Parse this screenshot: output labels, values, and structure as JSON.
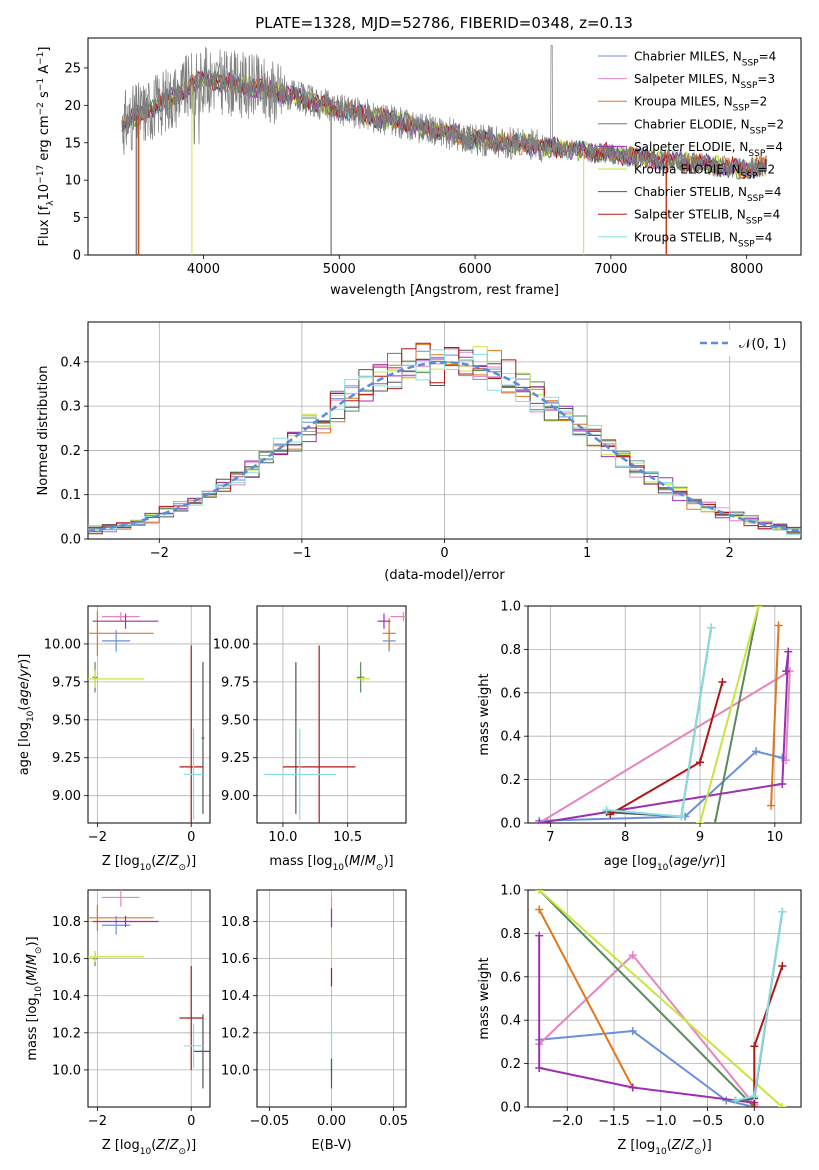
{
  "figure_title": "PLATE=1328, MJD=52786, FIBERID=0348, z=0.13",
  "colors": {
    "Chabrier MILES": "#6a8fdc",
    "Salpeter MILES": "#e684c0",
    "Kroupa MILES": "#e0781c",
    "Chabrier ELODIE": "#5a8a5a",
    "Salpeter ELODIE": "#9b30b0",
    "Kroupa ELODIE": "#c8e640",
    "Chabrier STELIB": "#555555",
    "Salpeter STELIB": "#b01818",
    "Kroupa STELIB": "#88dde0",
    "data": "#7f7f7f",
    "gaussian": "#5b8cdc"
  },
  "chart_data": [
    {
      "type": "line",
      "xlabel": "wavelength [Angstrom, rest frame]",
      "ylabel": "Flux [f_λ10^-17 erg cm^-2 s^-1 A^-1]",
      "xlim": [
        3150,
        8400
      ],
      "ylim": [
        0,
        29
      ],
      "xticks": [
        "4000",
        "5000",
        "6000",
        "7000",
        "8000"
      ],
      "yticks": [
        "0",
        "5",
        "10",
        "15",
        "20",
        "25"
      ],
      "legend_position": "top-right",
      "legend": [
        {
          "label": "Chabrier MILES, N_SSP=4",
          "color": "#6a8fdc"
        },
        {
          "label": "Salpeter MILES, N_SSP=3",
          "color": "#e684c0"
        },
        {
          "label": "Kroupa MILES, N_SSP=2",
          "color": "#e0781c"
        },
        {
          "label": "Chabrier ELODIE, N_SSP=2",
          "color": "#5a8a5a"
        },
        {
          "label": "Salpeter ELODIE, N_SSP=4",
          "color": "#9b30b0"
        },
        {
          "label": "Kroupa ELODIE, N_SSP=2",
          "color": "#c8e640"
        },
        {
          "label": "Chabrier STELIB, N_SSP=4",
          "color": "#555555"
        },
        {
          "label": "Salpeter STELIB, N_SSP=4",
          "color": "#b01818"
        },
        {
          "label": "Kroupa STELIB, N_SSP=4",
          "color": "#88dde0"
        }
      ],
      "continuum_x": [
        3400,
        3600,
        3800,
        4000,
        4200,
        4500,
        5000,
        5500,
        6000,
        6500,
        7000,
        7500,
        8000,
        8150
      ],
      "continuum_y": [
        17.5,
        19.5,
        21.5,
        23.5,
        23.0,
        22.0,
        19.5,
        17.5,
        15.5,
        14.5,
        13.5,
        12.5,
        11.5,
        12.0
      ]
    },
    {
      "type": "bar",
      "xlabel": "(data-model)/error",
      "ylabel": "Normed distribution",
      "xlim": [
        -2.5,
        2.5
      ],
      "ylim": [
        0,
        0.49
      ],
      "xticks": [
        "−2",
        "−1",
        "0",
        "1",
        "2"
      ],
      "yticks": [
        "0.0",
        "0.1",
        "0.2",
        "0.3",
        "0.4"
      ],
      "legend": [
        {
          "label": "𝒩(0, 1)",
          "color": "#5b8cdc"
        }
      ],
      "bin_width": 0.1
    },
    {
      "type": "scatter",
      "xlabel": "Z [log10(Z/Z⊙)]",
      "ylabel": "age  [log10(age/yr)]",
      "xlim": [
        -2.2,
        0.4
      ],
      "ylim": [
        8.82,
        10.25
      ],
      "xticks": [
        "−2",
        "0"
      ],
      "yticks": [
        "9.00",
        "9.25",
        "9.50",
        "9.75",
        "10.00"
      ],
      "points": [
        {
          "model": "Chabrier MILES",
          "x": -1.6,
          "y": 10.02,
          "xerr": 0.3,
          "yerr": 0.07
        },
        {
          "model": "Salpeter MILES",
          "x": -1.5,
          "y": 10.18,
          "xerr": 0.4,
          "yerr": 0.03
        },
        {
          "model": "Kroupa MILES",
          "x": -2.0,
          "y": 10.07,
          "xerr": 1.2,
          "yerr": 0.15
        },
        {
          "model": "Chabrier ELODIE",
          "x": -2.05,
          "y": 9.78,
          "xerr": 0.05,
          "yerr": 0.1
        },
        {
          "model": "Salpeter ELODIE",
          "x": -1.4,
          "y": 10.15,
          "xerr": 0.7,
          "yerr": 0.05
        },
        {
          "model": "Kroupa ELODIE",
          "x": -2.05,
          "y": 9.77,
          "xerr": 1.05,
          "yerr": 0.06
        },
        {
          "model": "Chabrier STELIB",
          "x": 0.25,
          "y": 9.38,
          "xerr": 0.03,
          "yerr": 0.5
        },
        {
          "model": "Salpeter STELIB",
          "x": 0.0,
          "y": 9.19,
          "xerr": 0.25,
          "yerr": 0.8
        },
        {
          "model": "Kroupa STELIB",
          "x": 0.05,
          "y": 9.14,
          "xerr": 0.2,
          "yerr": 0.3
        }
      ]
    },
    {
      "type": "scatter",
      "xlabel": "mass [log10(M/M⊙)]",
      "ylabel": "",
      "xlim": [
        9.8,
        10.95
      ],
      "ylim": [
        8.82,
        10.25
      ],
      "xticks": [
        "10.0",
        "10.5"
      ],
      "yticks": [
        "9.00",
        "9.25",
        "9.50",
        "9.75",
        "10.00"
      ],
      "points": [
        {
          "model": "Chabrier MILES",
          "x": 10.82,
          "y": 10.02,
          "xerr": 0.05,
          "yerr": 0.07
        },
        {
          "model": "Salpeter MILES",
          "x": 10.93,
          "y": 10.18,
          "xerr": 0.1,
          "yerr": 0.03
        },
        {
          "model": "Kroupa MILES",
          "x": 10.82,
          "y": 10.07,
          "xerr": 0.05,
          "yerr": 0.1
        },
        {
          "model": "Chabrier ELODIE",
          "x": 10.6,
          "y": 9.78,
          "xerr": 0.03,
          "yerr": 0.1
        },
        {
          "model": "Salpeter ELODIE",
          "x": 10.78,
          "y": 10.15,
          "xerr": 0.05,
          "yerr": 0.05
        },
        {
          "model": "Kroupa ELODIE",
          "x": 10.62,
          "y": 9.77,
          "xerr": 0.05,
          "yerr": 0.02
        },
        {
          "model": "Chabrier STELIB",
          "x": 10.1,
          "y": 9.38,
          "xerr": 0.0,
          "yerr": 0.5
        },
        {
          "model": "Salpeter STELIB",
          "x": 10.28,
          "y": 9.19,
          "xerr": 0.28,
          "yerr": 0.8
        },
        {
          "model": "Kroupa STELIB",
          "x": 10.13,
          "y": 9.14,
          "xerr": 0.28,
          "yerr": 0.3
        }
      ]
    },
    {
      "type": "line",
      "xlabel": "age  [log10(age/yr)]",
      "ylabel": "mass weight",
      "xlim": [
        6.7,
        10.35
      ],
      "ylim": [
        0,
        1
      ],
      "xticks": [
        "7",
        "8",
        "9",
        "10"
      ],
      "yticks": [
        "0.0",
        "0.2",
        "0.4",
        "0.6",
        "0.8",
        "1.0"
      ],
      "series": [
        {
          "model": "Chabrier MILES",
          "x": [
            6.85,
            8.8,
            9.75,
            10.1
          ],
          "y": [
            0.01,
            0.03,
            0.33,
            0.3
          ]
        },
        {
          "model": "Salpeter MILES",
          "x": [
            6.85,
            10.2,
            10.15
          ],
          "y": [
            0.0,
            0.7,
            0.29
          ]
        },
        {
          "model": "Kroupa MILES",
          "x": [
            9.95,
            10.05
          ],
          "y": [
            0.08,
            0.91
          ]
        },
        {
          "model": "Chabrier ELODIE",
          "x": [
            9.2,
            9.78
          ],
          "y": [
            0.0,
            1.0
          ]
        },
        {
          "model": "Salpeter ELODIE",
          "x": [
            6.85,
            10.1,
            10.18,
            10.15
          ],
          "y": [
            0.0,
            0.18,
            0.79,
            0.7
          ]
        },
        {
          "model": "Kroupa ELODIE",
          "x": [
            9.0,
            9.78
          ],
          "y": [
            0.0,
            1.0
          ]
        },
        {
          "model": "Chabrier STELIB",
          "x": [
            7.75,
            8.75,
            9.15
          ],
          "y": [
            0.05,
            0.03,
            0.9
          ]
        },
        {
          "model": "Salpeter STELIB",
          "x": [
            7.8,
            9.0,
            9.3
          ],
          "y": [
            0.04,
            0.28,
            0.65
          ]
        },
        {
          "model": "Kroupa STELIB",
          "x": [
            7.75,
            8.75,
            9.15
          ],
          "y": [
            0.06,
            0.03,
            0.9
          ]
        }
      ]
    },
    {
      "type": "scatter",
      "xlabel": "Z [log10(Z/Z⊙)]",
      "ylabel": "mass [log10(M/M⊙)]",
      "xlim": [
        -2.2,
        0.4
      ],
      "ylim": [
        9.8,
        10.97
      ],
      "xticks": [
        "−2",
        "0"
      ],
      "yticks": [
        "10.0",
        "10.2",
        "10.4",
        "10.6",
        "10.8"
      ],
      "points": [
        {
          "model": "Chabrier MILES",
          "x": -1.6,
          "y": 10.78,
          "xerr": 0.3,
          "yerr": 0.05
        },
        {
          "model": "Salpeter MILES",
          "x": -1.5,
          "y": 10.93,
          "xerr": 0.4,
          "yerr": 0.05
        },
        {
          "model": "Kroupa MILES",
          "x": -2.0,
          "y": 10.82,
          "xerr": 1.2,
          "yerr": 0.07
        },
        {
          "model": "Chabrier ELODIE",
          "x": -2.05,
          "y": 10.6,
          "xerr": 0.05,
          "yerr": 0.04
        },
        {
          "model": "Salpeter ELODIE",
          "x": -1.4,
          "y": 10.8,
          "xerr": 0.7,
          "yerr": 0.03
        },
        {
          "model": "Kroupa ELODIE",
          "x": -2.05,
          "y": 10.61,
          "xerr": 1.05,
          "yerr": 0.03
        },
        {
          "model": "Chabrier STELIB",
          "x": 0.25,
          "y": 10.1,
          "xerr": 0.2,
          "yerr": 0.2
        },
        {
          "model": "Salpeter STELIB",
          "x": 0.0,
          "y": 10.28,
          "xerr": 0.25,
          "yerr": 0.28
        },
        {
          "model": "Kroupa STELIB",
          "x": 0.05,
          "y": 10.13,
          "xerr": 0.2,
          "yerr": 0.12
        }
      ]
    },
    {
      "type": "scatter",
      "xlabel": "E(B-V)",
      "ylabel": "",
      "xlim": [
        -0.06,
        0.06
      ],
      "ylim": [
        9.8,
        10.97
      ],
      "xticks": [
        "−0.05",
        "0.00",
        "0.05"
      ],
      "yticks": [
        "10.0",
        "10.2",
        "10.4",
        "10.6",
        "10.8"
      ],
      "points": [
        {
          "model": "Salpeter MILES",
          "x": 0.0,
          "y": 10.85,
          "xerr": 0,
          "yerr": 0.08
        },
        {
          "model": "Salpeter ELODIE",
          "x": 0.0,
          "y": 10.82,
          "xerr": 0,
          "yerr": 0.05
        },
        {
          "model": "Kroupa ELODIE",
          "x": 0.0,
          "y": 10.62,
          "xerr": 0,
          "yerr": 0.04
        },
        {
          "model": "Salpeter STELIB",
          "x": 0.0,
          "y": 10.5,
          "xerr": 0,
          "yerr": 0.05
        },
        {
          "model": "Kroupa STELIB",
          "x": 0.0,
          "y": 10.1,
          "xerr": 0,
          "yerr": 0.15
        },
        {
          "model": "Chabrier STELIB",
          "x": 0.0,
          "y": 9.98,
          "xerr": 0,
          "yerr": 0.08
        }
      ]
    },
    {
      "type": "line",
      "xlabel": "Z [log10(Z/Z⊙)]",
      "ylabel": "mass weight",
      "xlim": [
        -2.42,
        0.5
      ],
      "ylim": [
        0,
        1
      ],
      "xticks": [
        "−2.0",
        "−1.5",
        "−1.0",
        "−0.5",
        "0.0"
      ],
      "yticks": [
        "0.0",
        "0.2",
        "0.4",
        "0.6",
        "0.8",
        "1.0"
      ],
      "series": [
        {
          "model": "Chabrier MILES",
          "x": [
            -2.3,
            -1.3,
            -0.3,
            0.0
          ],
          "y": [
            0.31,
            0.35,
            0.03,
            0.0
          ]
        },
        {
          "model": "Salpeter MILES",
          "x": [
            -2.3,
            -1.3,
            0.0
          ],
          "y": [
            0.29,
            0.7,
            0.01
          ]
        },
        {
          "model": "Kroupa MILES",
          "x": [
            -2.3,
            -1.3
          ],
          "y": [
            0.91,
            0.09
          ]
        },
        {
          "model": "Chabrier ELODIE",
          "x": [
            -2.3,
            0.0
          ],
          "y": [
            1.0,
            0.0
          ]
        },
        {
          "model": "Salpeter ELODIE",
          "x": [
            -2.3,
            -2.3,
            -1.3,
            0.0
          ],
          "y": [
            0.79,
            0.18,
            0.09,
            0.02
          ]
        },
        {
          "model": "Kroupa ELODIE",
          "x": [
            -2.3,
            0.3
          ],
          "y": [
            1.0,
            0.0
          ]
        },
        {
          "model": "Chabrier STELIB",
          "x": [
            -0.2,
            0.0,
            0.3
          ],
          "y": [
            0.03,
            0.04,
            0.9
          ]
        },
        {
          "model": "Salpeter STELIB",
          "x": [
            0.0,
            0.0,
            0.3
          ],
          "y": [
            0.0,
            0.28,
            0.65
          ]
        },
        {
          "model": "Kroupa STELIB",
          "x": [
            -0.2,
            0.0,
            0.3
          ],
          "y": [
            0.03,
            0.05,
            0.9
          ]
        }
      ]
    }
  ]
}
